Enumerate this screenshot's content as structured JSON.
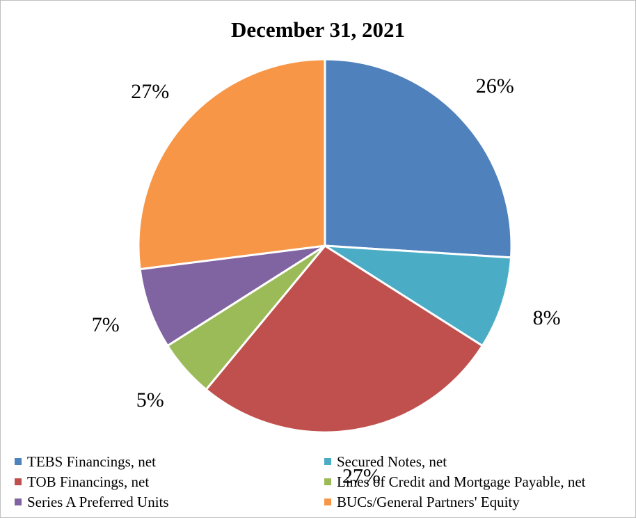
{
  "chart_data": {
    "type": "pie",
    "title": "December 31, 2021",
    "categories": [
      "TEBS Financings, net",
      "Secured Notes, net",
      "TOB Financings, net",
      "Lines of Credit and Mortgage Payable, net",
      "Series A Preferred Units",
      "BUCs/General Partners' Equity"
    ],
    "values": [
      26,
      8,
      27,
      5,
      7,
      27
    ],
    "labels": [
      "26%",
      "8%",
      "27%",
      "5%",
      "7%",
      "27%"
    ],
    "colors": [
      "#4f81bd",
      "#4bacc6",
      "#c0504d",
      "#9bbb59",
      "#8064a2",
      "#f79646"
    ],
    "start_angle": "12 o'clock, clockwise",
    "legend_position": "bottom"
  }
}
